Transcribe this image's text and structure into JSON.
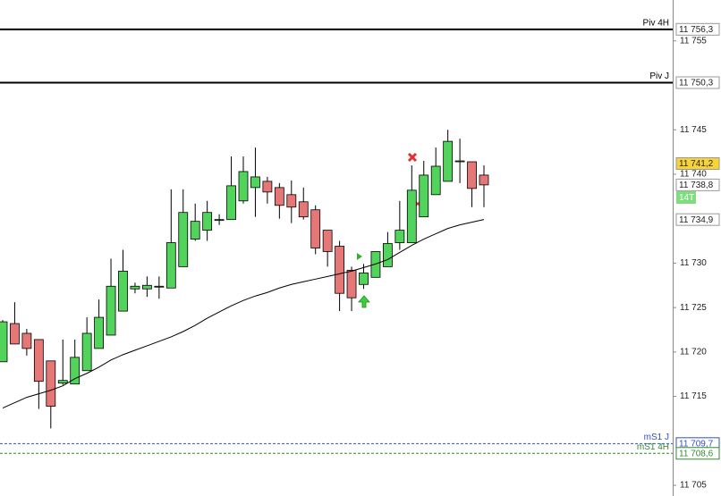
{
  "chart_data": {
    "type": "candlestick",
    "ylim": [
      11703.8,
      11759.6
    ],
    "yticks": [
      {
        "value": 11755,
        "label": "11 755"
      },
      {
        "value": 11745,
        "label": "11 745"
      },
      {
        "value": 11740,
        "label": "11 740"
      },
      {
        "value": 11730,
        "label": "11 730"
      },
      {
        "value": 11725,
        "label": "11 725"
      },
      {
        "value": 11720,
        "label": "11 720"
      },
      {
        "value": 11715,
        "label": "11 715"
      },
      {
        "value": 11705,
        "label": "11 705"
      }
    ],
    "up_color": "#52d35c",
    "down_color": "#e57777",
    "open": [
      11718.9,
      11723.2,
      11722.1,
      11721.4,
      11719.0,
      11716.5,
      11716.4,
      11717.9,
      11720.4,
      11721.9,
      11724.6,
      11727.1,
      11727.1,
      11727.4,
      11727.2,
      11729.6,
      11732.7,
      11733.7,
      11734.9,
      11734.9,
      11737.0,
      11738.5,
      11739.2,
      11738.5,
      11737.7,
      11736.9,
      11736.0,
      11733.7,
      11731.9,
      11729.2,
      11727.6,
      11728.4,
      11729.6,
      11732.3,
      11732.3,
      11735.2,
      11737.7,
      11739.2,
      11741.5,
      11741.4,
      11739.9
    ],
    "high": [
      11723.6,
      11725.6,
      11722.6,
      11721.4,
      11719.0,
      11721.4,
      11721.4,
      11723.9,
      11725.9,
      11730.5,
      11731.5,
      11727.8,
      11728.5,
      11728.5,
      11738.3,
      11738.3,
      11736.7,
      11737.0,
      11735.5,
      11742.0,
      11742.0,
      11743.0,
      11739.7,
      11739.0,
      11739.3,
      11738.5,
      11736.5,
      11733.7,
      11732.5,
      11729.6,
      11729.9,
      11731.3,
      11733.5,
      11737.0,
      11741.0,
      11741.5,
      11743.0,
      11745.0,
      11744.0,
      11741.4,
      11741.0
    ],
    "low": [
      11718.9,
      11720.9,
      11719.6,
      11713.6,
      11711.4,
      11716.3,
      11716.4,
      11717.9,
      11720.4,
      11721.9,
      11724.6,
      11726.6,
      11726.2,
      11726.0,
      11727.2,
      11729.6,
      11732.5,
      11732.5,
      11734.3,
      11734.9,
      11736.7,
      11735.2,
      11736.7,
      11735.0,
      11734.5,
      11734.9,
      11731.0,
      11729.6,
      11724.6,
      11724.6,
      11727.1,
      11728.4,
      11729.6,
      11731.5,
      11732.3,
      11735.2,
      11737.7,
      11739.2,
      11739.0,
      11736.3,
      11736.3
    ],
    "close": [
      11723.4,
      11720.9,
      11720.4,
      11716.7,
      11713.9,
      11716.8,
      11719.4,
      11722.1,
      11723.9,
      11727.4,
      11729.1,
      11727.4,
      11727.5,
      11727.4,
      11732.3,
      11735.7,
      11734.7,
      11735.7,
      11734.9,
      11738.7,
      11740.3,
      11739.7,
      11738.0,
      11736.5,
      11736.3,
      11735.2,
      11731.7,
      11731.3,
      11726.6,
      11726.1,
      11728.9,
      11731.3,
      11732.2,
      11733.7,
      11738.2,
      11739.9,
      11740.9,
      11743.7,
      11741.5,
      11738.4,
      11738.8
    ],
    "moving_average": {
      "color": "#000000",
      "values": [
        11713.7,
        11714.3,
        11714.9,
        11715.3,
        11715.7,
        11716.2,
        11717.0,
        11717.6,
        11718.3,
        11719.1,
        11719.7,
        11720.2,
        11720.7,
        11721.2,
        11721.7,
        11722.3,
        11723.0,
        11723.8,
        11724.5,
        11725.2,
        11725.8,
        11726.3,
        11726.7,
        11727.2,
        11727.6,
        11727.9,
        11728.2,
        11728.5,
        11728.8,
        11729.1,
        11729.5,
        11729.9,
        11730.4,
        11731.2,
        11732.0,
        11732.7,
        11733.3,
        11733.9,
        11734.3,
        11734.6,
        11734.9
      ]
    },
    "levels": [
      {
        "name": "Piv 4H",
        "value": 11756.3,
        "value_label": "11 756,3",
        "color": "#000000",
        "dashed": false
      },
      {
        "name": "Piv J",
        "value": 11750.3,
        "value_label": "11 750,3",
        "color": "#000000",
        "dashed": false
      },
      {
        "name": "mS1 J",
        "value": 11709.7,
        "value_label": "11 709,7",
        "color": "#3050c8",
        "dashed": true
      },
      {
        "name": "mS1 4H",
        "value": 11708.6,
        "value_label": "11 708,6",
        "color": "#2e8b2e",
        "dashed": true
      }
    ],
    "price_tags": {
      "values": [
        11741.2,
        11738.8,
        11734.9
      ],
      "value_labels": [
        "11 741,2",
        "11 738,8",
        "11 734,9"
      ],
      "colors": [
        "#f7d33a",
        "#ffffff",
        "#ffffff"
      ]
    },
    "timeframe_tag": "14T"
  }
}
